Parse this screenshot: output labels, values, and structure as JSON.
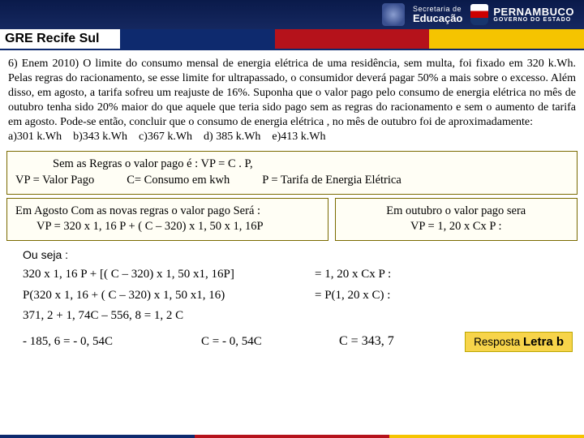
{
  "header": {
    "secretaria_l1": "Secretaria de",
    "secretaria_l2": "Educação",
    "pe_l1": "PERNAMBUCO",
    "pe_l2": "GOVERNO DO ESTADO"
  },
  "title": "GRE Recife Sul",
  "question": "6) Enem 2010) O limite do consumo mensal de energia elétrica de uma residência, sem multa, foi fixado em 320 k.Wh. Pelas regras do racionamento, se esse limite for ultrapassado, o consumidor deverá pagar 50% a mais sobre o excesso. Além disso, em agosto, a tarifa sofreu um reajuste de 16%. Suponha que o valor pago pelo consumo de energia elétrica no mês de outubro tenha sido 20% maior do que aquele que teria sido pago sem as regras do racionamento e sem o aumento de tarifa em agosto. Pode-se então, concluir que o consumo de energia elétrica , no mês de outubro foi de aproximadamente:",
  "alternatives": "a)301 k.Wh    b)343 k.Wh    c)367 k.Wh    d) 385 k.Wh    e)413 k.Wh",
  "box1": {
    "l1": "Sem as Regras o valor pago  é  :  VP = C . P,",
    "l2a": "VP = Valor Pago",
    "l2b": "C= Consumo  em kwh",
    "l2c": "P = Tarifa de Energia Elétrica"
  },
  "box2": {
    "l1": "Em Agosto Com as novas regras o valor pago  Será  :",
    "l2": "VP =  320 x 1, 16 P  +  ( C – 320) x 1, 50 x 1, 16P"
  },
  "box3": {
    "l1": "Em outubro o valor pago sera",
    "l2": "VP = 1, 20 x Cx P :"
  },
  "steps": {
    "s1": "Ou seja :",
    "s2l": "320 x 1, 16 P  + [( C – 320) x 1, 50 x1, 16P]",
    "s2r": "= 1, 20 x Cx P :",
    "s3l": "P(320 x 1, 16  + ( C – 320) x 1, 50 x1, 16)",
    "s3r": "= P(1, 20 x C) :",
    "s4": "371, 2 + 1, 74C – 556, 8  = 1, 2 C",
    "s5a": "- 185, 6 = - 0, 54C",
    "s5b": "C = - 0, 54C",
    "s5c": "C = 343, 7"
  },
  "answer": {
    "label": "Resposta",
    "value": "Letra  b"
  },
  "colors": {
    "blue": "#0e2a6e",
    "red": "#b5121b",
    "yellow": "#f5c400"
  }
}
